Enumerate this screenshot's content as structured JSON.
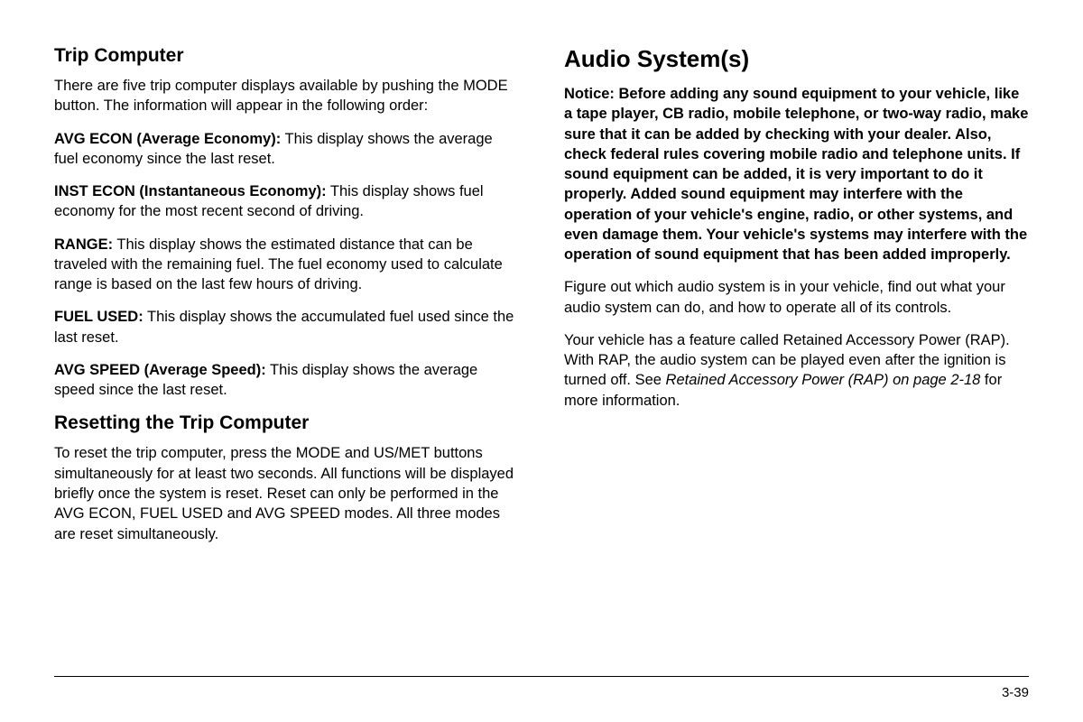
{
  "page": {
    "number": "3-39"
  },
  "left": {
    "title1": "Trip Computer",
    "intro": "There are five trip computer displays available by pushing the MODE button. The information will appear in the following order:",
    "items": [
      {
        "label": "AVG ECON (Average Economy):",
        "text": "  This display shows the average fuel economy since the last reset."
      },
      {
        "label": "INST ECON (Instantaneous Economy):",
        "text": "  This display shows fuel economy for the most recent second of driving."
      },
      {
        "label": "RANGE:",
        "text": "  This display shows the estimated distance that can be traveled with the remaining fuel. The fuel economy used to calculate range is based on the last few hours of driving."
      },
      {
        "label": "FUEL USED:",
        "text": "  This display shows the accumulated fuel used since the last reset."
      },
      {
        "label": "AVG SPEED (Average Speed):",
        "text": "  This display shows the average speed since the last reset."
      }
    ],
    "title2": "Resetting the Trip Computer",
    "reset_text": "To reset the trip computer, press the MODE and US/MET buttons simultaneously for at least two seconds. All functions will be displayed briefly once the system is reset. Reset can only be performed in the AVG ECON, FUEL USED and AVG SPEED modes. All three modes are reset simultaneously."
  },
  "right": {
    "title": "Audio System(s)",
    "notice_label": "Notice:",
    "notice_text": "  Before adding any sound equipment to your vehicle, like a tape player, CB radio, mobile telephone, or two-way radio, make sure that it can be added by checking with your dealer. Also, check federal rules covering mobile radio and telephone units. If sound equipment can be added, it is very important to do it properly. Added sound equipment may interfere with the operation of your vehicle's engine, radio, or other systems, and even damage them. Your vehicle's systems may interfere with the operation of sound equipment that has been added improperly.",
    "para1": "Figure out which audio system is in your vehicle, find out what your audio system can do, and how to operate all of its controls.",
    "rap_pre": "Your vehicle has a feature called Retained Accessory Power (RAP). With RAP, the audio system can be played even after the ignition is turned off. See ",
    "rap_italic": "Retained Accessory Power (RAP) on page 2-18",
    "rap_post": " for more information."
  },
  "style": {
    "body_fontsize": 16.5,
    "section_title_fontsize": 21,
    "major_title_fontsize": 26,
    "line_height": 1.35,
    "text_color": "#000000",
    "bg_color": "#ffffff"
  }
}
